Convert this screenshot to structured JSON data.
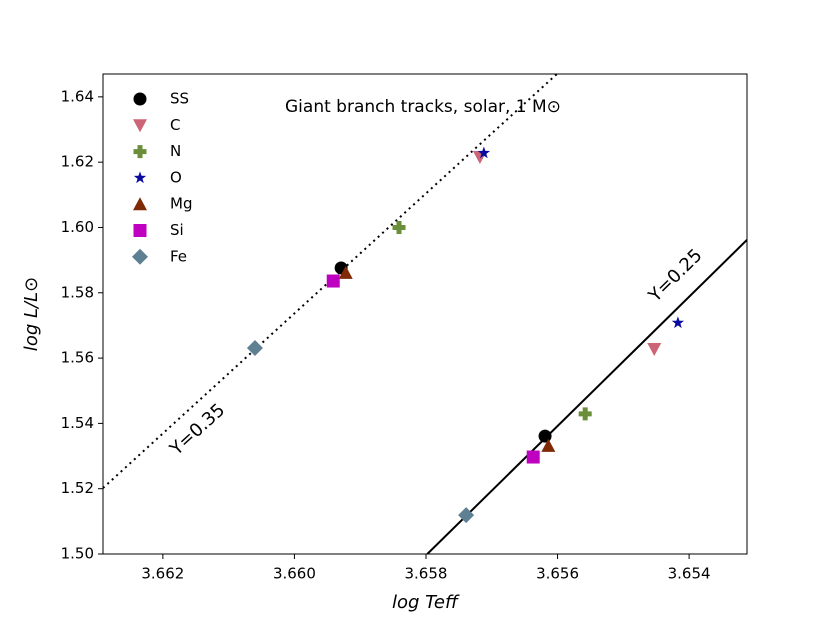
{
  "chart_data": {
    "type": "scatter",
    "title": "Giant branch tracks, solar, 1 M⊙",
    "x_label": "log Teff",
    "y_label": "log L/L⊙",
    "xlim": [
      3.66291,
      3.65312
    ],
    "ylim": [
      1.5,
      1.647
    ],
    "xticks": [
      3.662,
      {
        "value": 3.66,
        "label": "3.660"
      },
      3.658,
      3.656,
      3.654
    ],
    "yticks": [
      {
        "value": 1.5,
        "label": "1.50"
      },
      1.52,
      1.54,
      1.56,
      1.58,
      {
        "value": 1.6,
        "label": "1.60"
      },
      1.62,
      1.64
    ],
    "legend": "upper left",
    "series": [
      {
        "name": "SS",
        "color": "#000000",
        "marker": "circle",
        "x": [
          3.65929,
          3.65619
        ],
        "values": [
          1.5876,
          1.5361
        ]
      },
      {
        "name": "C",
        "color": "#cc6677",
        "marker": "triangle-down",
        "x": [
          3.65718,
          3.65453
        ],
        "values": [
          1.6216,
          1.5628
        ]
      },
      {
        "name": "N",
        "color": "#6b8e3a",
        "marker": "plus",
        "x": [
          3.65841,
          3.65558
        ],
        "values": [
          1.6,
          1.5429
        ]
      },
      {
        "name": "O",
        "color": "#0a0aa0",
        "marker": "star",
        "x": [
          3.65712,
          3.65417
        ],
        "values": [
          1.6228,
          1.5708
        ]
      },
      {
        "name": "Mg",
        "color": "#7f2a04",
        "marker": "triangle-up",
        "x": [
          3.65922,
          3.65614
        ],
        "values": [
          1.5861,
          1.5331
        ]
      },
      {
        "name": "Si",
        "color": "#c000c0",
        "marker": "square",
        "x": [
          3.65941,
          3.65637
        ],
        "values": [
          1.5836,
          1.5297
        ]
      },
      {
        "name": "Fe",
        "color": "#5f7f92",
        "marker": "diamond",
        "x": [
          3.6606,
          3.65739
        ],
        "values": [
          1.5631,
          1.5119
        ]
      }
    ],
    "lines": [
      {
        "label": "Y=0.35",
        "style": "dotted",
        "color": "#000000",
        "x": [
          3.66291,
          3.65601
        ],
        "values": [
          1.5202,
          1.647
        ]
      },
      {
        "label": "Y=0.25",
        "style": "solid",
        "color": "#000000",
        "x": [
          3.65798,
          3.65312
        ],
        "values": [
          1.5,
          1.5962
        ]
      }
    ]
  }
}
